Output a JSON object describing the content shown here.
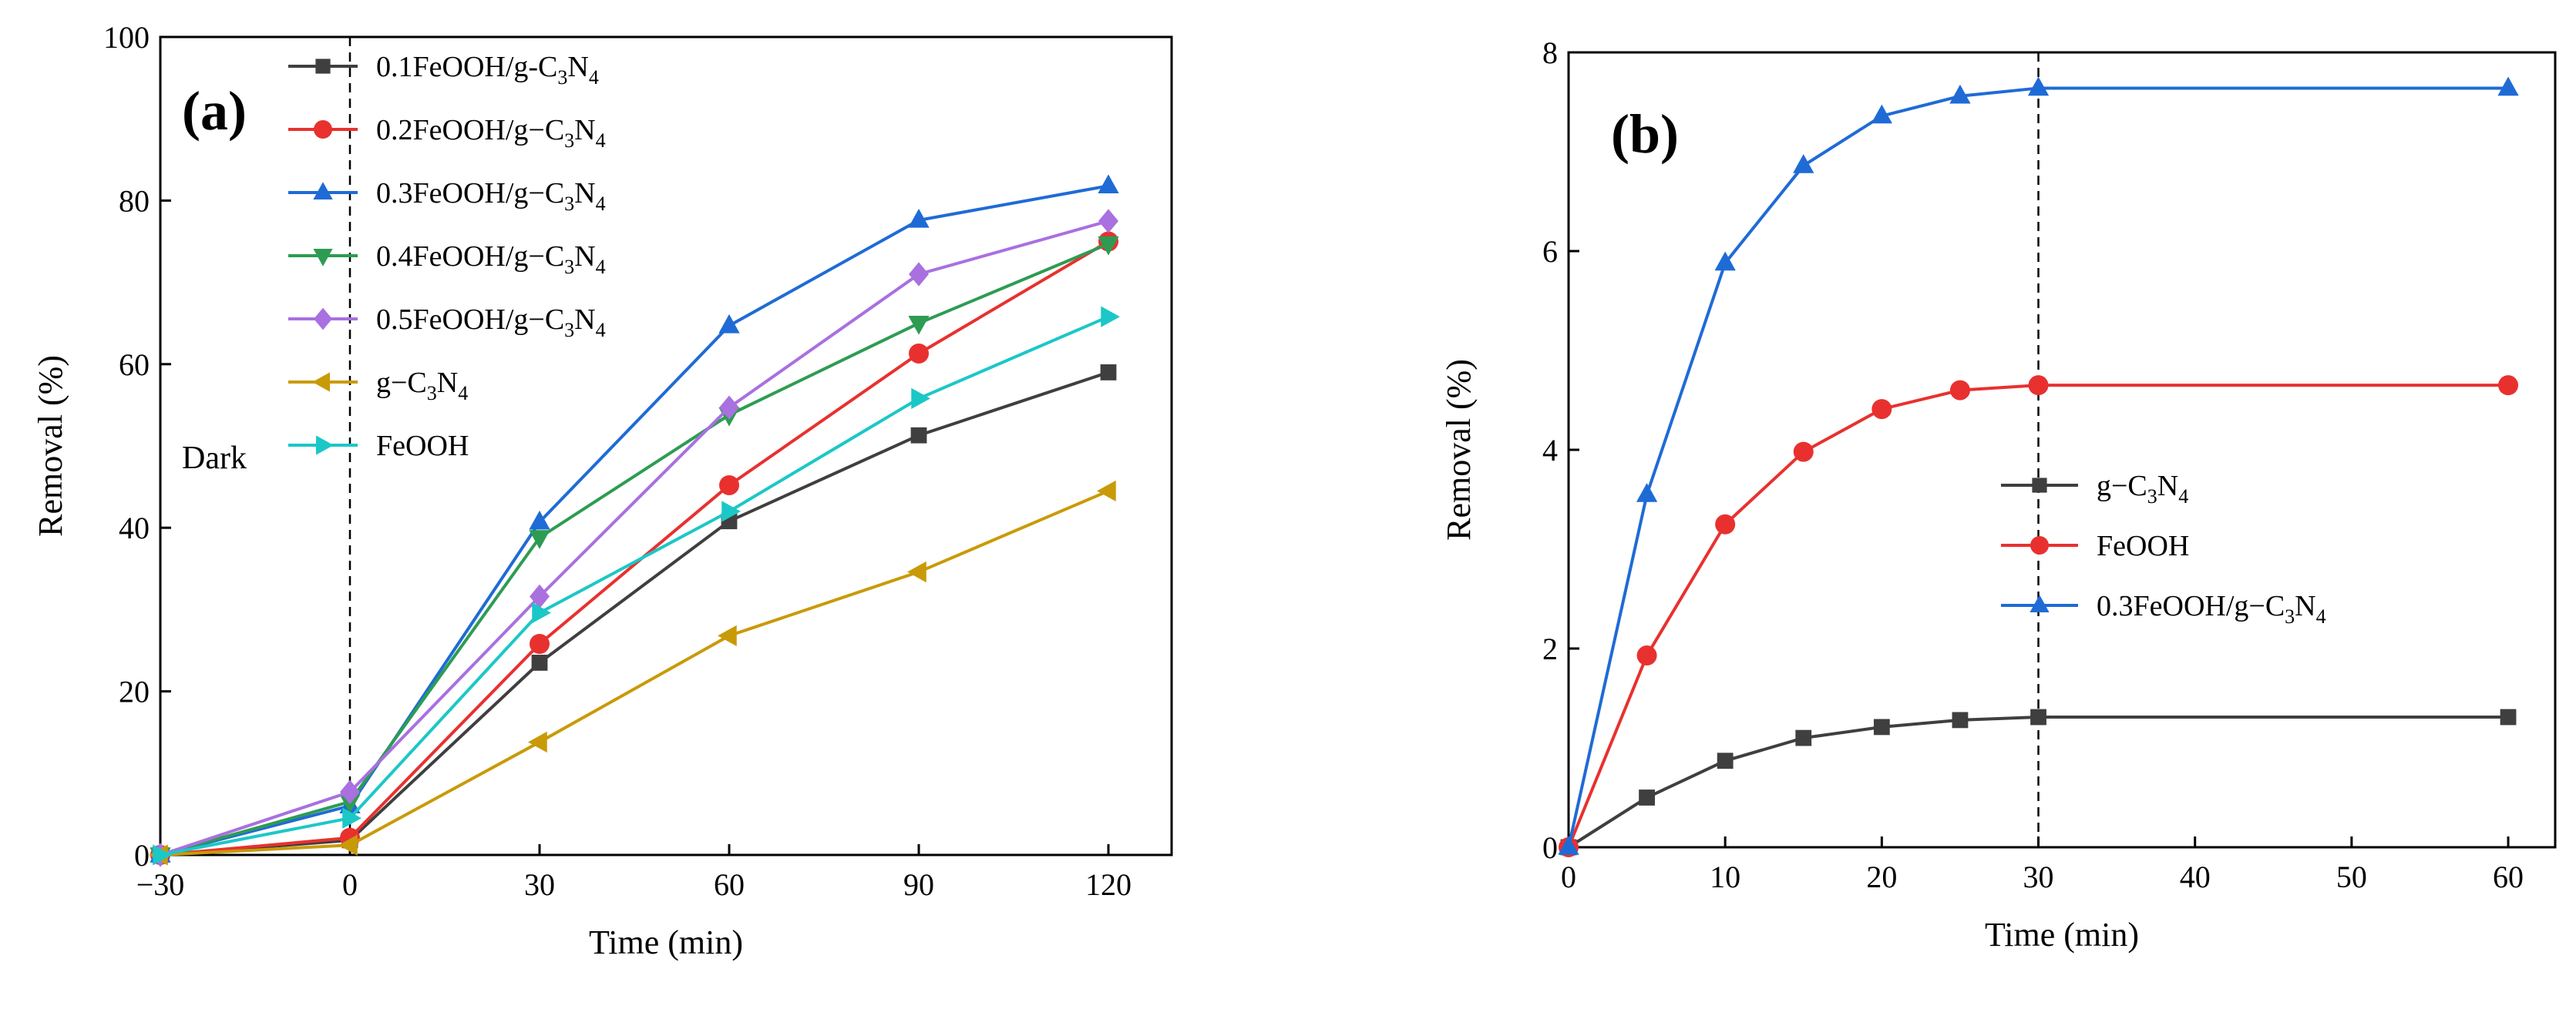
{
  "chart_data": [
    {
      "type": "line",
      "panel_label": "(a)",
      "xlabel": "Time (min)",
      "ylabel": "Removal (%)",
      "xlim": [
        -30,
        130
      ],
      "ylim": [
        0,
        100
      ],
      "xticks": [
        -30,
        0,
        30,
        60,
        90,
        120
      ],
      "xtick_labels": [
        "−30",
        "0",
        "30",
        "60",
        "90",
        "120"
      ],
      "yticks": [
        0,
        20,
        40,
        60,
        80,
        100
      ],
      "ytick_labels": [
        "0",
        "20",
        "40",
        "60",
        "80",
        "100"
      ],
      "vline_x": 0,
      "annotation": "Dark",
      "legend_position": "top-left",
      "x": [
        -30,
        0,
        30,
        60,
        90,
        120
      ],
      "series": [
        {
          "name": "0.1FeOOH/g-C3N4",
          "label_main": "0.1FeOOH/g-C",
          "label_sub1": "3",
          "label_mid": "N",
          "label_sub2": "4",
          "color": "#3f3f3f",
          "marker": "square",
          "values": [
            0,
            1.8,
            23.5,
            40.8,
            51.3,
            59
          ]
        },
        {
          "name": "0.2FeOOH/g-C3N4",
          "label_main": "0.2FeOOH/g−C",
          "label_sub1": "3",
          "label_mid": "N",
          "label_sub2": "4",
          "color": "#e8312f",
          "marker": "circle",
          "values": [
            0,
            2.1,
            25.8,
            45.2,
            61.3,
            75
          ]
        },
        {
          "name": "0.3FeOOH/g-C3N4",
          "label_main": "0.3FeOOH/g−C",
          "label_sub1": "3",
          "label_mid": "N",
          "label_sub2": "4",
          "color": "#1f6bd6",
          "marker": "triangle-up",
          "values": [
            0,
            6,
            40.7,
            64.7,
            77.6,
            81.8
          ]
        },
        {
          "name": "0.4FeOOH/g-C3N4",
          "label_main": "0.4FeOOH/g−C",
          "label_sub1": "3",
          "label_mid": "N",
          "label_sub2": "4",
          "color": "#2d9c52",
          "marker": "triangle-down",
          "values": [
            0,
            6.5,
            38.8,
            53.8,
            65,
            74.7
          ]
        },
        {
          "name": "0.5FeOOH/g-C3N4",
          "label_main": "0.5FeOOH/g−C",
          "label_sub1": "3",
          "label_mid": "N",
          "label_sub2": "4",
          "color": "#a970e0",
          "marker": "diamond",
          "values": [
            0,
            7.7,
            31.6,
            54.7,
            71,
            77.5
          ]
        },
        {
          "name": "g-C3N4",
          "label_main": "g−C",
          "label_sub1": "3",
          "label_mid": "N",
          "label_sub2": "4",
          "color": "#c99a08",
          "marker": "triangle-left",
          "values": [
            0,
            1.2,
            13.8,
            26.8,
            34.6,
            44.5
          ]
        },
        {
          "name": "FeOOH",
          "label_main": "FeOOH",
          "label_sub1": "",
          "label_mid": "",
          "label_sub2": "",
          "color": "#1cc7c7",
          "marker": "triangle-right",
          "values": [
            0,
            4.5,
            29.6,
            42,
            55.8,
            65.8
          ]
        }
      ]
    },
    {
      "type": "line",
      "panel_label": "(b)",
      "xlabel": "Time (min)",
      "ylabel": "Removal (%)",
      "xlim": [
        0,
        63
      ],
      "ylim": [
        0,
        8
      ],
      "xticks": [
        0,
        10,
        20,
        30,
        40,
        50,
        60
      ],
      "xtick_labels": [
        "0",
        "10",
        "20",
        "30",
        "40",
        "50",
        "60"
      ],
      "yticks": [
        0,
        2,
        4,
        6,
        8
      ],
      "ytick_labels": [
        "0",
        "2",
        "4",
        "6",
        "8"
      ],
      "vline_x": 30,
      "legend_position": "center-right",
      "x": [
        0,
        5,
        10,
        15,
        20,
        25,
        30,
        60
      ],
      "series": [
        {
          "name": "g-C3N4",
          "label_main": "g−C",
          "label_sub1": "3",
          "label_mid": "N",
          "label_sub2": "4",
          "color": "#3f3f3f",
          "marker": "square",
          "values": [
            0,
            0.5,
            0.87,
            1.1,
            1.21,
            1.28,
            1.31,
            1.31
          ]
        },
        {
          "name": "FeOOH",
          "label_main": "FeOOH",
          "label_sub1": "",
          "label_mid": "",
          "label_sub2": "",
          "color": "#e8312f",
          "marker": "circle",
          "values": [
            0,
            1.93,
            3.25,
            3.98,
            4.41,
            4.6,
            4.65,
            4.65
          ]
        },
        {
          "name": "0.3FeOOH/g-C3N4",
          "label_main": "0.3FeOOH/g−C",
          "label_sub1": "3",
          "label_mid": "N",
          "label_sub2": "4",
          "color": "#1f6bd6",
          "marker": "triangle-up",
          "values": [
            0,
            3.55,
            5.88,
            6.86,
            7.36,
            7.56,
            7.64,
            7.64
          ]
        }
      ]
    }
  ]
}
